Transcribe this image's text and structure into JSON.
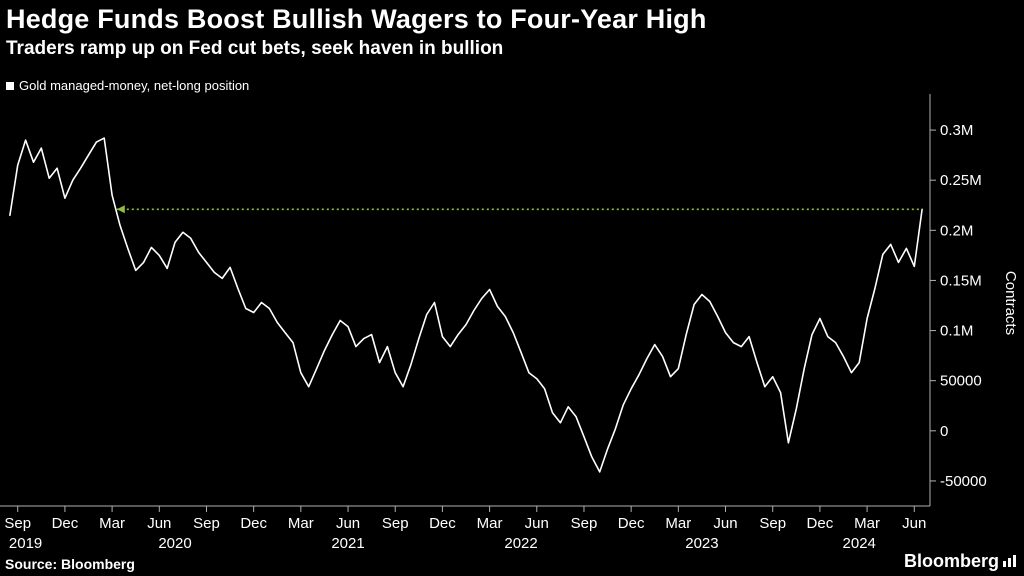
{
  "header": {
    "title": "Hedge Funds Boost Bullish Wagers to Four-Year High",
    "subtitle": "Traders ramp up on Fed cut bets, seek haven in bullion",
    "legend": "Gold managed-money, net-long position"
  },
  "footer": {
    "source": "Source: Bloomberg",
    "brand": "Bloomberg"
  },
  "colors": {
    "background": "#000000",
    "line": "#ffffff",
    "axis": "#b0b0b0",
    "tick_text": "#ffffff",
    "reference_line": "#8fbc3f"
  },
  "chart_data": {
    "type": "line",
    "title": "Hedge Funds Boost Bullish Wagers to Four-Year High",
    "subtitle": "Traders ramp up on Fed cut bets, seek haven in bullion",
    "series_name": "Gold managed-money, net-long position",
    "ylabel": "Contracts",
    "xlabel": "",
    "grid": false,
    "legend_position": "top-left",
    "ylim": [
      -75000,
      330000
    ],
    "y_tick_values": [
      300000,
      250000,
      200000,
      150000,
      100000,
      50000,
      0,
      -50000
    ],
    "y_tick_labels": [
      "0.3M",
      "0.25M",
      "0.2M",
      "0.15M",
      "0.1M",
      "50000",
      "0",
      "-50000"
    ],
    "x_span_months": 59,
    "x_ticks": [
      {
        "m": 1,
        "label": "Sep"
      },
      {
        "m": 4,
        "label": "Dec"
      },
      {
        "m": 7,
        "label": "Mar"
      },
      {
        "m": 10,
        "label": "Jun"
      },
      {
        "m": 13,
        "label": "Sep"
      },
      {
        "m": 16,
        "label": "Dec"
      },
      {
        "m": 19,
        "label": "Mar"
      },
      {
        "m": 22,
        "label": "Jun"
      },
      {
        "m": 25,
        "label": "Sep"
      },
      {
        "m": 28,
        "label": "Dec"
      },
      {
        "m": 31,
        "label": "Mar"
      },
      {
        "m": 34,
        "label": "Jun"
      },
      {
        "m": 37,
        "label": "Sep"
      },
      {
        "m": 40,
        "label": "Dec"
      },
      {
        "m": 43,
        "label": "Mar"
      },
      {
        "m": 46,
        "label": "Jun"
      },
      {
        "m": 49,
        "label": "Sep"
      },
      {
        "m": 52,
        "label": "Dec"
      },
      {
        "m": 55,
        "label": "Mar"
      },
      {
        "m": 58,
        "label": "Jun"
      }
    ],
    "year_labels": [
      {
        "m": 1.5,
        "label": "2019"
      },
      {
        "m": 11,
        "label": "2020"
      },
      {
        "m": 22,
        "label": "2021"
      },
      {
        "m": 33,
        "label": "2022"
      },
      {
        "m": 44.5,
        "label": "2023"
      },
      {
        "m": 54.5,
        "label": "2024"
      }
    ],
    "points_start_month": 0.5,
    "points_end_month": 58.5,
    "reference_line": {
      "value": 221000,
      "start_month": 7.3
    },
    "values": [
      215000,
      265000,
      290000,
      268000,
      282000,
      252000,
      262000,
      232000,
      250000,
      262000,
      275000,
      288000,
      292000,
      235000,
      205000,
      182000,
      160000,
      168000,
      183000,
      175000,
      162000,
      188000,
      198000,
      192000,
      178000,
      168000,
      158000,
      152000,
      163000,
      142000,
      122000,
      118000,
      128000,
      122000,
      108000,
      98000,
      88000,
      58000,
      44000,
      62000,
      80000,
      96000,
      110000,
      104000,
      84000,
      92000,
      96000,
      68000,
      84000,
      58000,
      44000,
      66000,
      92000,
      116000,
      128000,
      94000,
      84000,
      96000,
      106000,
      120000,
      132000,
      141000,
      124000,
      114000,
      98000,
      78000,
      58000,
      52000,
      42000,
      18000,
      8000,
      24000,
      14000,
      -6000,
      -26000,
      -41000,
      -18000,
      2000,
      26000,
      42000,
      56000,
      72000,
      86000,
      74000,
      54000,
      62000,
      96000,
      126000,
      136000,
      129000,
      114000,
      98000,
      88000,
      84000,
      94000,
      68000,
      44000,
      54000,
      38000,
      -12000,
      22000,
      62000,
      96000,
      112000,
      94000,
      88000,
      74000,
      58000,
      68000,
      112000,
      142000,
      176000,
      186000,
      168000,
      182000,
      164000,
      221000
    ]
  }
}
